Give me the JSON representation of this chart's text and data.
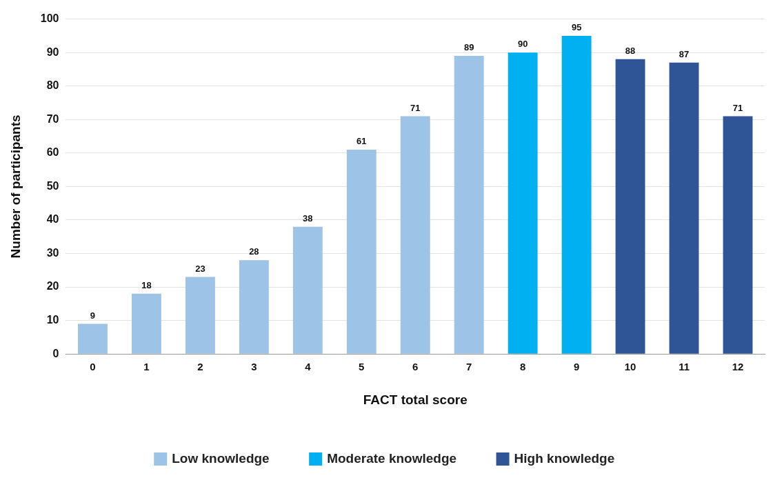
{
  "chart_data": {
    "type": "bar",
    "xlabel": "FACT total score",
    "ylabel": "Number of participants",
    "categories": [
      "0",
      "1",
      "2",
      "3",
      "4",
      "5",
      "6",
      "7",
      "8",
      "9",
      "10",
      "11",
      "12"
    ],
    "series": [
      {
        "name": "Low knowledge",
        "color": "#9dc3e6",
        "values": [
          9,
          18,
          23,
          28,
          38,
          61,
          71,
          89,
          null,
          null,
          null,
          null,
          null
        ]
      },
      {
        "name": "Moderate knowledge",
        "color": "#00b0f0",
        "values": [
          null,
          null,
          null,
          null,
          null,
          null,
          null,
          null,
          90,
          95,
          null,
          null,
          null
        ]
      },
      {
        "name": "High knowledge",
        "color": "#2f5597",
        "values": [
          null,
          null,
          null,
          null,
          null,
          null,
          null,
          null,
          null,
          null,
          88,
          87,
          71
        ]
      }
    ],
    "ylim": [
      0,
      100
    ],
    "yticks": [
      0,
      10,
      20,
      30,
      40,
      50,
      60,
      70,
      80,
      90,
      100
    ],
    "grid": "y",
    "legend": "bottom",
    "data_labels": true
  }
}
